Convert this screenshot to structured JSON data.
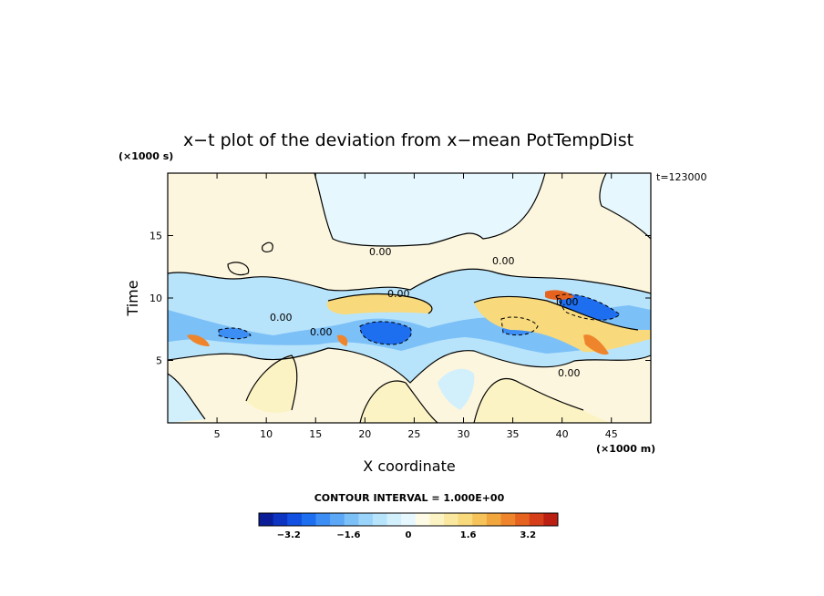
{
  "chart_data": {
    "type": "heatmap",
    "title": "x−t plot of the deviation from x−mean PotTempDist",
    "xlabel": "X coordinate",
    "ylabel": "Time",
    "x_unit": "(×1000 m)",
    "y_unit": "(×1000 s)",
    "time_annotation": "t=123000",
    "xlim": [
      0,
      49
    ],
    "ylim": [
      0,
      20
    ],
    "x_ticks": [
      5,
      10,
      15,
      20,
      25,
      30,
      35,
      40,
      45
    ],
    "y_ticks": [
      5,
      10,
      15
    ],
    "contour_label": "0.00",
    "contour_interval_text": "CONTOUR INTERVAL = 1.000E+00",
    "colorbar": {
      "min": -4.0,
      "max": 4.0,
      "step": 0.4,
      "tick_values": [
        -3.2,
        -1.6,
        0,
        1.6,
        3.2
      ],
      "tick_labels": [
        "−3.2",
        "−1.6",
        "0",
        "1.6",
        "3.2"
      ],
      "colors": [
        "#0b1e98",
        "#0d35c2",
        "#1150e0",
        "#1e6ef0",
        "#3d8ef4",
        "#5ca8f6",
        "#7cc0f8",
        "#9ad4fa",
        "#b8e4fb",
        "#d2f0fc",
        "#e6f8fd",
        "#fdfbe6",
        "#fcf3c4",
        "#fae8a0",
        "#f8d97c",
        "#f5c35a",
        "#f2a63e",
        "#ee852c",
        "#e6621f",
        "#d53e18",
        "#bb1f12"
      ]
    },
    "colors": {
      "background": "#fdf6de",
      "upper_region": "#e6f8fd",
      "cold_anomaly": "#1e6ef0",
      "warm_anomaly": "#e6621f"
    }
  }
}
